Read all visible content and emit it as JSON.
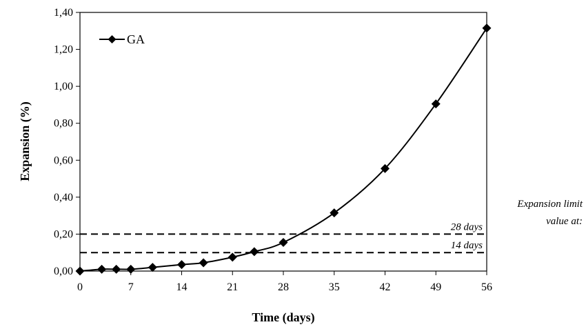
{
  "chart_data": {
    "type": "line",
    "xlabel": "Time (days)",
    "ylabel": "Expansion (%)",
    "xlim": [
      0,
      56
    ],
    "ylim": [
      0,
      1.4
    ],
    "x_ticks": [
      "0",
      "7",
      "14",
      "21",
      "28",
      "35",
      "42",
      "49",
      "56"
    ],
    "y_ticks": [
      "0,00",
      "0,20",
      "0,40",
      "0,60",
      "0,80",
      "1,00",
      "1,20",
      "1,40"
    ],
    "grid": false,
    "legend_position": "top-left",
    "series": [
      {
        "name": "GA",
        "color": "#000000",
        "marker": "diamond",
        "x": [
          0,
          3,
          5,
          7,
          10,
          14,
          17,
          21,
          24,
          28,
          35,
          42,
          49,
          56
        ],
        "y": [
          0.0,
          0.01,
          0.01,
          0.01,
          0.02,
          0.035,
          0.045,
          0.075,
          0.105,
          0.155,
          0.315,
          0.555,
          0.905,
          1.315
        ]
      }
    ],
    "reference_lines": [
      {
        "y": 0.2,
        "label": "28 days",
        "style": "dashed"
      },
      {
        "y": 0.1,
        "label": "14 days",
        "style": "dashed"
      }
    ],
    "annotation": {
      "line1": "Expansion limit",
      "line2": "value at:"
    }
  }
}
